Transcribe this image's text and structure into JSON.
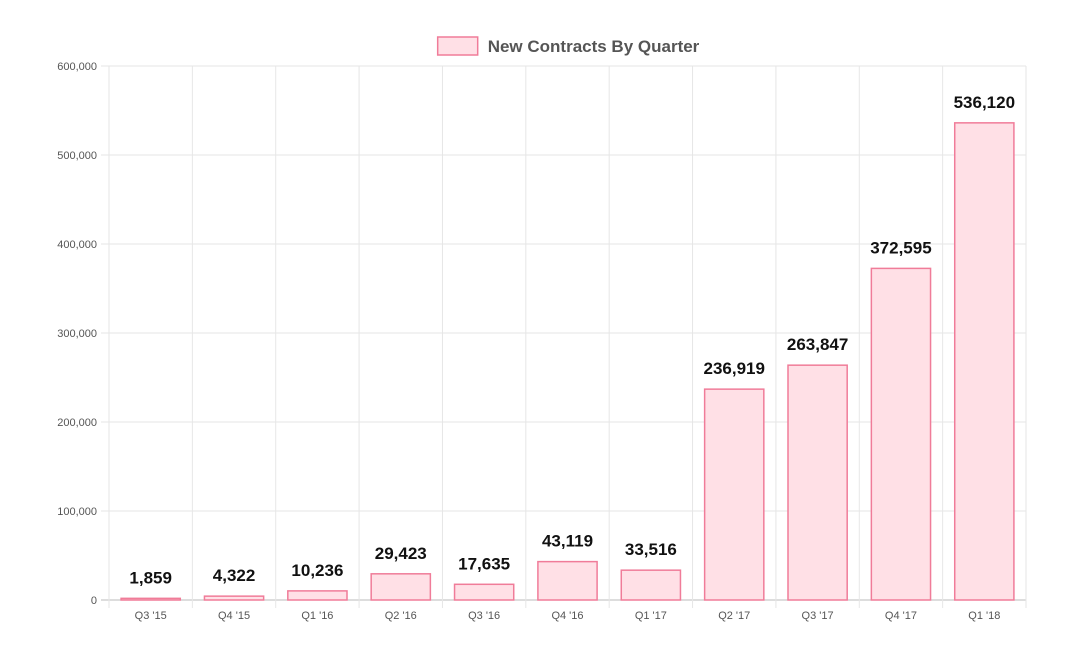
{
  "chart_data": {
    "type": "bar",
    "legend": {
      "position": "top",
      "label": "New Contracts By Quarter"
    },
    "categories": [
      "Q3 '15",
      "Q4 '15",
      "Q1 '16",
      "Q2 '16",
      "Q3 '16",
      "Q4 '16",
      "Q1 '17",
      "Q2 '17",
      "Q3 '17",
      "Q4 '17",
      "Q1 '18"
    ],
    "series": [
      {
        "name": "New Contracts By Quarter",
        "values": [
          1859,
          4322,
          10236,
          29423,
          17635,
          43119,
          33516,
          236919,
          263847,
          372595,
          536120
        ],
        "data_labels": [
          "1,859",
          "4,322",
          "10,236",
          "29,423",
          "17,635",
          "43,119",
          "33,516",
          "236,919",
          "263,847",
          "372,595",
          "536,120"
        ]
      }
    ],
    "y_ticks": [
      "0",
      "100,000",
      "200,000",
      "300,000",
      "400,000",
      "500,000",
      "600,000"
    ],
    "ylim": [
      0,
      600000
    ],
    "grid": true,
    "colors": {
      "bar_fill": "#ffe0e6",
      "bar_stroke": "#f07c99",
      "grid": "#e6e6e6"
    }
  }
}
